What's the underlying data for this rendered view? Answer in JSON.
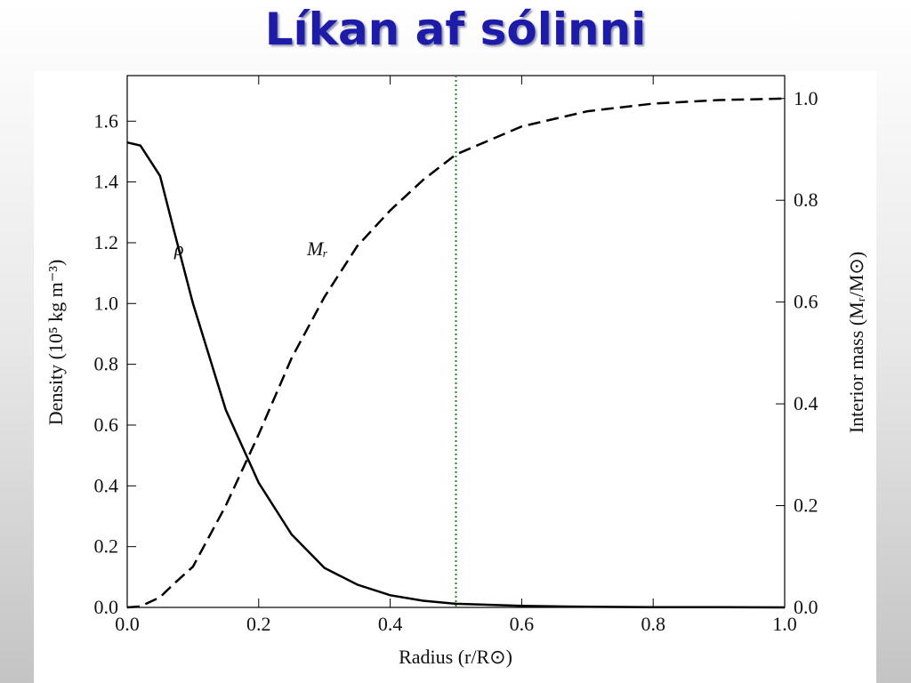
{
  "title": "Líkan af sólinni",
  "chart_data": {
    "type": "line",
    "xlabel": "Radius (r/R⊙)",
    "ylabel": "Density (10⁵ kg m⁻³)",
    "y2label": "Interior mass (Mᵣ/M⊙)",
    "x": [
      0,
      0.02,
      0.05,
      0.07,
      0.1,
      0.15,
      0.2,
      0.25,
      0.3,
      0.35,
      0.4,
      0.45,
      0.5,
      0.6,
      0.7,
      0.8,
      0.9,
      1.0
    ],
    "series": [
      {
        "name": "ρ",
        "color": "#000000",
        "dash": false,
        "values": [
          1.53,
          1.52,
          1.42,
          1.25,
          1.0,
          0.65,
          0.41,
          0.24,
          0.13,
          0.075,
          0.04,
          0.022,
          0.012,
          0.005,
          0.002,
          0.001,
          0.0005,
          0
        ]
      },
      {
        "name": "Mᵣ",
        "color": "#000000",
        "dash": true,
        "axis": "y2",
        "values": [
          0,
          0.002,
          0.02,
          0.045,
          0.08,
          0.2,
          0.34,
          0.49,
          0.61,
          0.71,
          0.78,
          0.84,
          0.89,
          0.945,
          0.975,
          0.99,
          0.997,
          1.0
        ]
      }
    ],
    "vline": {
      "x": 0.5,
      "color": "#1a8a1a"
    },
    "xlim": [
      0,
      1.0
    ],
    "ylim": [
      0,
      1.75
    ],
    "y2lim": [
      0,
      1.045
    ],
    "xticks": [
      {
        "value": 0,
        "label": "0.0"
      },
      0.2,
      0.4,
      0.6,
      0.8,
      {
        "value": 1,
        "label": "1.0"
      }
    ],
    "yticks": [
      {
        "value": 0,
        "label": "0.0"
      },
      0.2,
      0.4,
      0.6,
      0.8,
      {
        "value": 1,
        "label": "1.0"
      },
      1.2,
      1.4,
      1.6
    ],
    "y2ticks": [
      {
        "value": 0,
        "label": "0.0"
      },
      0.2,
      0.4,
      0.6,
      0.8,
      {
        "value": 1,
        "label": "1.0"
      }
    ]
  }
}
